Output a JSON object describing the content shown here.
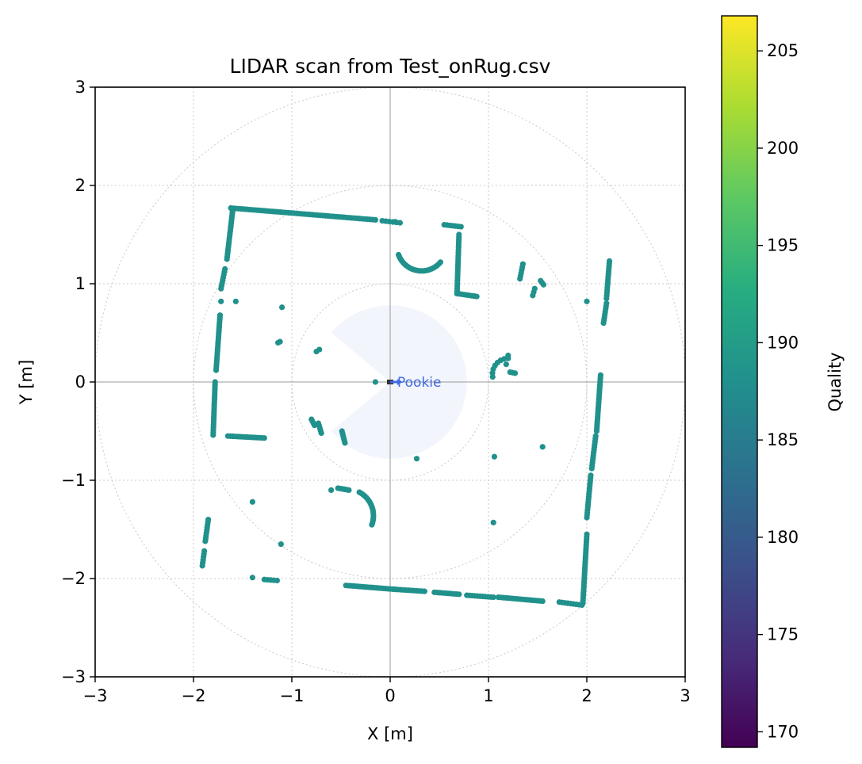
{
  "chart_data": {
    "type": "scatter",
    "title": "LIDAR scan from Test_onRug.csv",
    "xlabel": "X [m]",
    "ylabel": "Y [m]",
    "xlim": [
      -3,
      3
    ],
    "ylim": [
      -3,
      3
    ],
    "xticks": [
      -3,
      -2,
      -1,
      0,
      1,
      2,
      3
    ],
    "yticks": [
      -3,
      -2,
      -1,
      0,
      1,
      2,
      3
    ],
    "xtick_labels": [
      "−3",
      "−2",
      "−1",
      "0",
      "1",
      "2",
      "3"
    ],
    "ytick_labels": [
      "−3",
      "−2",
      "−1",
      "0",
      "1",
      "2",
      "3"
    ],
    "grid": true,
    "range_rings_m": [
      1,
      2,
      3
    ],
    "point_color": "#21918c",
    "colorbar": {
      "label": "Quality",
      "min": 169.2,
      "max": 206.8,
      "ticks": [
        170,
        175,
        180,
        185,
        190,
        195,
        200,
        205
      ],
      "tick_labels": [
        "170",
        "175",
        "180",
        "185",
        "190",
        "195",
        "200",
        "205"
      ],
      "colormap": "viridis"
    },
    "robot": {
      "label": "Pookie",
      "x": 0,
      "y": 0,
      "heading_deg": 0,
      "color": "#4169e1",
      "fov_radius_m": 0.78,
      "fov_blind_from_deg": 140,
      "fov_blind_to_deg": 220
    },
    "segments": [
      {
        "from": [
          -1.62,
          1.77
        ],
        "to": [
          -0.15,
          1.65
        ],
        "n": 56
      },
      {
        "from": [
          -0.08,
          1.64
        ],
        "to": [
          0.1,
          1.62
        ],
        "n": 6
      },
      {
        "from": [
          -1.6,
          1.76
        ],
        "to": [
          -1.66,
          1.25
        ],
        "n": 22
      },
      {
        "from": [
          -1.68,
          1.15
        ],
        "to": [
          -1.72,
          0.95
        ],
        "n": 8
      },
      {
        "from": [
          -1.73,
          0.68
        ],
        "to": [
          -1.77,
          0.12
        ],
        "n": 24
      },
      {
        "from": [
          -1.78,
          0.0
        ],
        "to": [
          -1.8,
          -0.54
        ],
        "n": 22
      },
      {
        "from": [
          -1.65,
          -0.55
        ],
        "to": [
          -1.28,
          -0.57
        ],
        "n": 16
      },
      {
        "from": [
          0.55,
          1.6
        ],
        "to": [
          0.72,
          1.58
        ],
        "n": 7
      },
      {
        "from": [
          0.7,
          1.5
        ],
        "to": [
          0.68,
          0.9
        ],
        "n": 24
      },
      {
        "from": [
          0.68,
          0.9
        ],
        "to": [
          0.88,
          0.87
        ],
        "n": 9
      },
      {
        "from": [
          -0.45,
          -2.07
        ],
        "to": [
          0.05,
          -2.11
        ],
        "n": 22
      },
      {
        "from": [
          0.05,
          -2.11
        ],
        "to": [
          0.35,
          -2.13
        ],
        "n": 12
      },
      {
        "from": [
          0.45,
          -2.14
        ],
        "to": [
          0.7,
          -2.16
        ],
        "n": 10
      },
      {
        "from": [
          0.78,
          -2.17
        ],
        "to": [
          1.05,
          -2.19
        ],
        "n": 11
      },
      {
        "from": [
          1.1,
          -2.19
        ],
        "to": [
          1.55,
          -2.23
        ],
        "n": 19
      },
      {
        "from": [
          1.72,
          -2.24
        ],
        "to": [
          1.95,
          -2.27
        ],
        "n": 9
      },
      {
        "from": [
          1.96,
          -2.25
        ],
        "to": [
          2.0,
          -1.55
        ],
        "n": 28
      },
      {
        "from": [
          2.0,
          -1.38
        ],
        "to": [
          2.04,
          -0.95
        ],
        "n": 17
      },
      {
        "from": [
          2.05,
          -0.88
        ],
        "to": [
          2.09,
          -0.55
        ],
        "n": 13
      },
      {
        "from": [
          2.1,
          -0.5
        ],
        "to": [
          2.14,
          0.07
        ],
        "n": 24
      },
      {
        "from": [
          2.2,
          0.85
        ],
        "to": [
          2.23,
          1.23
        ],
        "n": 15
      },
      {
        "from": [
          2.17,
          0.6
        ],
        "to": [
          2.2,
          0.8
        ],
        "n": 8
      },
      {
        "from": [
          -1.85,
          -1.4
        ],
        "to": [
          -1.88,
          -1.62
        ],
        "n": 9
      },
      {
        "from": [
          -1.89,
          -1.72
        ],
        "to": [
          -1.91,
          -1.87
        ],
        "n": 6
      },
      {
        "from": [
          -1.28,
          -2.01
        ],
        "to": [
          -1.15,
          -2.02
        ],
        "n": 5
      },
      {
        "from": [
          1.35,
          1.2
        ],
        "to": [
          1.32,
          1.05
        ],
        "n": 6
      },
      {
        "from": [
          1.45,
          0.88
        ],
        "to": [
          1.47,
          0.95
        ],
        "n": 3
      },
      {
        "from": [
          1.53,
          1.03
        ],
        "to": [
          1.56,
          0.99
        ],
        "n": 3
      },
      {
        "from": [
          -0.8,
          -0.38
        ],
        "to": [
          -0.77,
          -0.44
        ],
        "n": 4
      },
      {
        "from": [
          -0.73,
          -0.42
        ],
        "to": [
          -0.7,
          -0.52
        ],
        "n": 5
      },
      {
        "from": [
          -0.49,
          -0.5
        ],
        "to": [
          -0.46,
          -0.62
        ],
        "n": 6
      },
      {
        "from": [
          1.22,
          0.1
        ],
        "to": [
          1.27,
          0.09
        ],
        "n": 3
      },
      {
        "from": [
          -0.53,
          -1.08
        ],
        "to": [
          -0.42,
          -1.1
        ],
        "n": 6
      }
    ],
    "arcs": [
      {
        "cx": 0.32,
        "cy": 1.38,
        "r": 0.25,
        "from_deg": 200,
        "to_deg": 320,
        "n": 24
      },
      {
        "cx": -0.44,
        "cy": -1.36,
        "r": 0.27,
        "from_deg": 62,
        "to_deg": -20,
        "n": 18
      },
      {
        "cx": 1.2,
        "cy": 0.08,
        "r": 0.16,
        "from_deg": 90,
        "to_deg": 190,
        "n": 8
      }
    ],
    "points": [
      [
        0.05,
        1.63
      ],
      [
        -1.72,
        0.82
      ],
      [
        -1.57,
        0.82
      ],
      [
        -1.1,
        0.76
      ],
      [
        -1.12,
        0.41
      ],
      [
        -1.14,
        0.4
      ],
      [
        -0.72,
        0.33
      ],
      [
        -0.75,
        0.31
      ],
      [
        -0.15,
        0.0
      ],
      [
        0.27,
        -0.78
      ],
      [
        1.06,
        -0.76
      ],
      [
        1.55,
        -0.66
      ],
      [
        1.05,
        -1.43
      ],
      [
        -0.6,
        -1.1
      ],
      [
        -1.4,
        -1.22
      ],
      [
        -1.11,
        -1.65
      ],
      [
        -1.4,
        -1.99
      ],
      [
        2.0,
        0.82
      ],
      [
        1.18,
        0.18
      ],
      [
        1.2,
        0.27
      ]
    ]
  }
}
